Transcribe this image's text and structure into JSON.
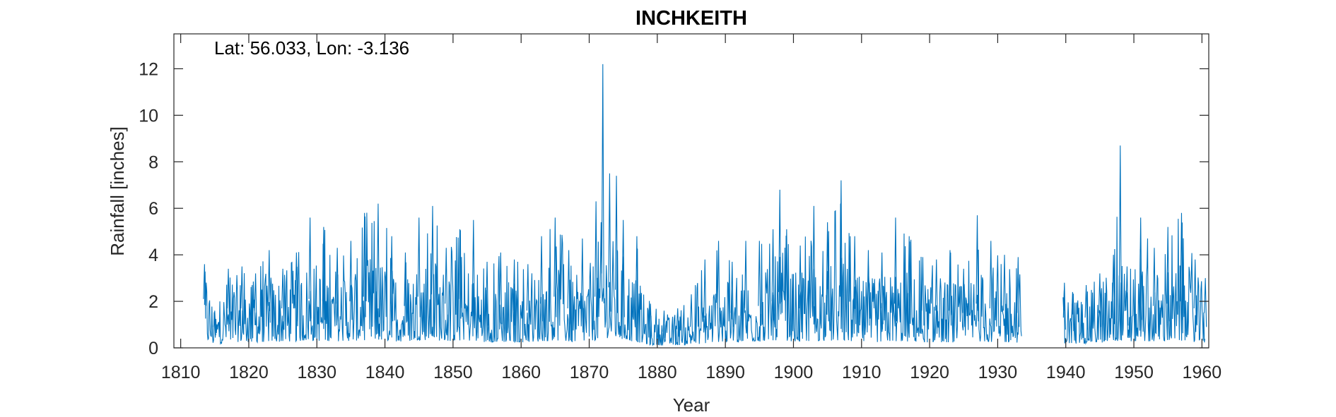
{
  "chart_data": {
    "type": "line",
    "title": "INCHKEITH",
    "xlabel": "Year",
    "ylabel": "Rainfall [inches]",
    "annotation": "Lat: 56.033, Lon: -3.136",
    "xlim": [
      1809,
      1961
    ],
    "ylim": [
      0,
      13.5
    ],
    "xticks": [
      1810,
      1820,
      1830,
      1840,
      1850,
      1860,
      1870,
      1880,
      1890,
      1900,
      1910,
      1920,
      1930,
      1940,
      1950,
      1960
    ],
    "yticks": [
      0,
      2,
      4,
      6,
      8,
      10,
      12
    ],
    "grid": false,
    "series": [
      {
        "color": "#0072bd",
        "resolution": "monthly, approximated by annual summaries",
        "gap": [
          1933.5,
          1939.6
        ],
        "years": [
          1813.5,
          1815,
          1817,
          1819,
          1821,
          1823,
          1825,
          1827,
          1829,
          1831,
          1833,
          1835,
          1837,
          1839,
          1841,
          1843,
          1845,
          1847,
          1849,
          1851,
          1853,
          1855,
          1857,
          1859,
          1861,
          1863,
          1865,
          1867,
          1869,
          1871,
          1872,
          1873,
          1874,
          1875,
          1877,
          1879,
          1881,
          1883,
          1885,
          1887,
          1889,
          1891,
          1893,
          1895,
          1897,
          1898,
          1899,
          1901,
          1903,
          1905,
          1907,
          1909,
          1911,
          1913,
          1915,
          1917,
          1919,
          1921,
          1923,
          1925,
          1927,
          1929,
          1931,
          1933,
          1939.8,
          1941,
          1943,
          1945,
          1947,
          1948,
          1949,
          1951,
          1953,
          1955,
          1957,
          1959,
          1960.5
        ],
        "peak": [
          3.6,
          1.6,
          3.4,
          3.5,
          3.2,
          4.2,
          3.4,
          4.1,
          5.6,
          5.2,
          4.3,
          4.6,
          5.8,
          6.2,
          4.8,
          4.1,
          5.6,
          6.1,
          4.3,
          5.1,
          5.5,
          3.7,
          4.1,
          3.8,
          3.6,
          4.8,
          5.6,
          4.2,
          4.7,
          6.3,
          12.2,
          7.5,
          7.4,
          5.5,
          4.8,
          1.9,
          1.6,
          1.7,
          2.3,
          3.8,
          4.6,
          3.7,
          4.6,
          4.6,
          5.1,
          6.8,
          5.1,
          4.4,
          6.1,
          5.4,
          7.2,
          4.8,
          4.2,
          4.1,
          5.6,
          4.8,
          3.9,
          3.8,
          4.2,
          3.4,
          5.7,
          4.6,
          4.0,
          3.9,
          2.8,
          2.4,
          2.7,
          3.2,
          4.0,
          8.7,
          3.5,
          5.6,
          4.3,
          5.2,
          5.8,
          3.8,
          3.0
        ],
        "mean": [
          2.1,
          0.9,
          1.7,
          1.7,
          1.6,
          1.8,
          1.7,
          1.9,
          2.1,
          2.0,
          1.9,
          2.0,
          2.2,
          2.2,
          1.9,
          1.8,
          2.2,
          2.3,
          1.9,
          2.1,
          2.0,
          1.6,
          1.7,
          1.6,
          1.6,
          1.9,
          2.2,
          1.7,
          1.7,
          2.2,
          3.2,
          2.6,
          2.5,
          2.2,
          1.7,
          0.8,
          0.7,
          0.8,
          0.9,
          1.3,
          1.7,
          1.5,
          1.7,
          1.8,
          2.0,
          2.4,
          2.0,
          1.7,
          2.1,
          1.9,
          2.2,
          1.7,
          1.6,
          1.7,
          1.9,
          1.8,
          1.6,
          1.6,
          1.6,
          1.5,
          1.9,
          1.7,
          1.6,
          1.5,
          1.3,
          1.2,
          1.3,
          1.5,
          1.7,
          2.2,
          1.6,
          2.0,
          1.8,
          1.9,
          2.0,
          1.7,
          1.5
        ]
      }
    ]
  }
}
